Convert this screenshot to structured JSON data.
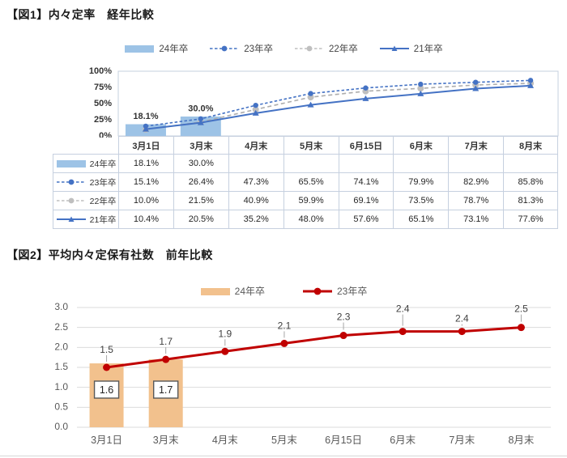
{
  "fig1": {
    "title": "【図1】内々定率　経年比較",
    "legend": [
      {
        "label": "24年卒",
        "swatch": "bar",
        "color": "#9DC3E6"
      },
      {
        "label": "23年卒",
        "swatch": "dash-dot",
        "color": "#4472C4"
      },
      {
        "label": "22年卒",
        "swatch": "dash-dot",
        "color": "#BFBFBF"
      },
      {
        "label": "21年卒",
        "swatch": "solid-tri",
        "color": "#4472C4"
      }
    ],
    "y_ticks": [
      "100%",
      "75%",
      "50%",
      "25%",
      "0%"
    ],
    "categories": [
      "3月1日",
      "3月末",
      "4月末",
      "5月末",
      "6月15日",
      "6月末",
      "7月末",
      "8月末"
    ],
    "bar_labels": [
      "18.1%",
      "30.0%"
    ],
    "table": {
      "rows": [
        {
          "key": "24年卒",
          "cells": [
            "18.1%",
            "30.0%",
            "",
            "",
            "",
            "",
            "",
            ""
          ]
        },
        {
          "key": "23年卒",
          "cells": [
            "15.1%",
            "26.4%",
            "47.3%",
            "65.5%",
            "74.1%",
            "79.9%",
            "82.9%",
            "85.8%"
          ]
        },
        {
          "key": "22年卒",
          "cells": [
            "10.0%",
            "21.5%",
            "40.9%",
            "59.9%",
            "69.1%",
            "73.5%",
            "78.7%",
            "81.3%"
          ]
        },
        {
          "key": "21年卒",
          "cells": [
            "10.4%",
            "20.5%",
            "35.2%",
            "48.0%",
            "57.6%",
            "65.1%",
            "73.1%",
            "77.6%"
          ]
        }
      ]
    }
  },
  "fig2": {
    "title": "【図2】平均内々定保有社数　前年比較",
    "legend": [
      {
        "label": "24年卒",
        "swatch": "bar",
        "color": "#F2C18D"
      },
      {
        "label": "23年卒",
        "swatch": "solid-dot",
        "color": "#C00000"
      }
    ],
    "y_ticks": [
      "3.0",
      "2.5",
      "2.0",
      "1.5",
      "1.0",
      "0.5",
      "0.0"
    ],
    "categories": [
      "3月1日",
      "3月末",
      "4月末",
      "5月末",
      "6月15日",
      "6月末",
      "7月末",
      "8月末"
    ],
    "bar_boxed_labels": [
      "1.6",
      "1.7"
    ],
    "point_labels": [
      "1.5",
      "1.7",
      "1.9",
      "2.1",
      "2.3",
      "2.4",
      "2.4",
      "2.5"
    ]
  },
  "colors": {
    "fig1_bar": "#9DC3E6",
    "fig1_blue": "#4472C4",
    "fig1_gray": "#ADADAD",
    "fig1_gray_marker": "#BFBFBF",
    "table_border": "#c6d0df",
    "fig2_bar": "#F2C18D",
    "fig2_red": "#C00000",
    "gridline": "#DBDBDB",
    "axis_text": "#595959",
    "dark_text": "#333333"
  },
  "chart_data": [
    {
      "type": "line",
      "title": "【図1】内々定率　経年比較",
      "categories": [
        "3月1日",
        "3月末",
        "4月末",
        "5月末",
        "6月15日",
        "6月末",
        "7月末",
        "8月末"
      ],
      "series": [
        {
          "name": "24年卒",
          "style": "bar",
          "color": "#9DC3E6",
          "values": [
            18.1,
            30.0,
            null,
            null,
            null,
            null,
            null,
            null
          ]
        },
        {
          "name": "23年卒",
          "style": "dashed-line",
          "color": "#4472C4",
          "marker": "circle",
          "values": [
            15.1,
            26.4,
            47.3,
            65.5,
            74.1,
            79.9,
            82.9,
            85.8
          ]
        },
        {
          "name": "22年卒",
          "style": "dashed-line",
          "color": "#ADADAD",
          "marker": "circle",
          "values": [
            10.0,
            21.5,
            40.9,
            59.9,
            69.1,
            73.5,
            78.7,
            81.3
          ]
        },
        {
          "name": "21年卒",
          "style": "solid-line",
          "color": "#4472C4",
          "marker": "triangle",
          "values": [
            10.4,
            20.5,
            35.2,
            48.0,
            57.6,
            65.1,
            73.1,
            77.6
          ]
        }
      ],
      "unit": "%",
      "ylim": [
        0,
        100
      ],
      "y_tick_step": 25,
      "grid": false,
      "legend_position": "top",
      "data_table": true
    },
    {
      "type": "line",
      "title": "【図2】平均内々定保有社数　前年比較",
      "categories": [
        "3月1日",
        "3月末",
        "4月末",
        "5月末",
        "6月15日",
        "6月末",
        "7月末",
        "8月末"
      ],
      "series": [
        {
          "name": "24年卒",
          "style": "bar",
          "color": "#F2C18D",
          "values": [
            1.6,
            1.7,
            null,
            null,
            null,
            null,
            null,
            null
          ]
        },
        {
          "name": "23年卒",
          "style": "solid-line",
          "color": "#C00000",
          "marker": "circle",
          "values": [
            1.5,
            1.7,
            1.9,
            2.1,
            2.3,
            2.4,
            2.4,
            2.5
          ]
        }
      ],
      "ylim": [
        0,
        3
      ],
      "y_tick_step": 0.5,
      "grid": true,
      "legend_position": "top"
    }
  ]
}
